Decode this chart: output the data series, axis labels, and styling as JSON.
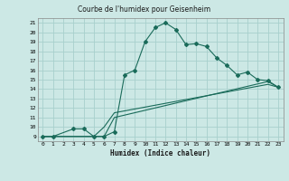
{
  "title": "Courbe de l'humidex pour Geisenheim",
  "xlabel": "Humidex (Indice chaleur)",
  "bg_color": "#cce8e5",
  "line_color": "#1a6b5a",
  "grid_color": "#a8d0cc",
  "xlim": [
    -0.5,
    23.5
  ],
  "ylim": [
    8.5,
    21.5
  ],
  "xticks": [
    0,
    1,
    2,
    3,
    4,
    5,
    6,
    7,
    8,
    9,
    10,
    11,
    12,
    13,
    14,
    15,
    16,
    17,
    18,
    19,
    20,
    21,
    22,
    23
  ],
  "yticks": [
    9,
    10,
    11,
    12,
    13,
    14,
    15,
    16,
    17,
    18,
    19,
    20,
    21
  ],
  "line1_x": [
    0,
    1,
    3,
    4,
    5,
    6,
    7,
    8,
    9,
    10,
    11,
    12,
    13,
    14,
    15,
    16,
    17,
    18,
    19,
    20,
    21,
    22,
    23
  ],
  "line1_y": [
    9,
    9,
    9.8,
    9.8,
    9,
    9,
    9.5,
    15.5,
    16,
    19,
    20.5,
    21,
    20.3,
    18.7,
    18.8,
    18.5,
    17.3,
    16.5,
    15.5,
    15.8,
    15,
    14.9,
    14.2
  ],
  "line2_x": [
    0,
    6,
    7,
    22,
    23
  ],
  "line2_y": [
    9,
    9,
    11,
    14.8,
    14.2
  ],
  "line3_x": [
    0,
    5,
    6,
    7,
    22,
    23
  ],
  "line3_y": [
    9,
    9,
    10,
    11.5,
    14.5,
    14.2
  ]
}
